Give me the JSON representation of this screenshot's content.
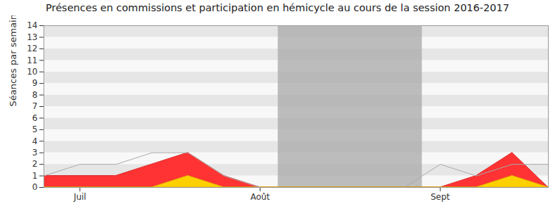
{
  "chart_data": {
    "type": "area",
    "title": "Présences en commissions et participation en hémicycle au cours de la session 2016-2017",
    "y_label": "Séances par semaine",
    "x": [
      0,
      1,
      2,
      3,
      4,
      5,
      6,
      7,
      8,
      9,
      10,
      11,
      12,
      13,
      14
    ],
    "xlim": [
      0,
      14
    ],
    "xticks": [
      {
        "value": 1,
        "label": "Juil"
      },
      {
        "value": 6,
        "label": "Août"
      },
      {
        "value": 11,
        "label": "Sept"
      }
    ],
    "ylim": [
      0,
      14
    ],
    "yticks": [
      0,
      1,
      2,
      3,
      4,
      5,
      6,
      7,
      8,
      9,
      10,
      11,
      12,
      13,
      14
    ],
    "grid": true,
    "shaded_range": [
      6.5,
      10.5
    ],
    "series": [
      {
        "type": "area",
        "color": "#ff3333",
        "values": [
          1,
          1,
          1,
          2,
          3,
          1,
          0,
          0,
          0,
          0,
          0,
          0,
          1,
          3,
          0
        ]
      },
      {
        "type": "area",
        "color": "#ffd000",
        "values": [
          0,
          0,
          0,
          0,
          1,
          0,
          0,
          0,
          0,
          0,
          0,
          0,
          0,
          1,
          0
        ]
      },
      {
        "type": "line",
        "color": "#aaaaaa",
        "values": [
          1,
          2,
          2,
          3,
          3,
          1,
          0,
          0,
          0,
          0,
          0,
          2,
          1,
          2,
          2
        ]
      }
    ]
  }
}
